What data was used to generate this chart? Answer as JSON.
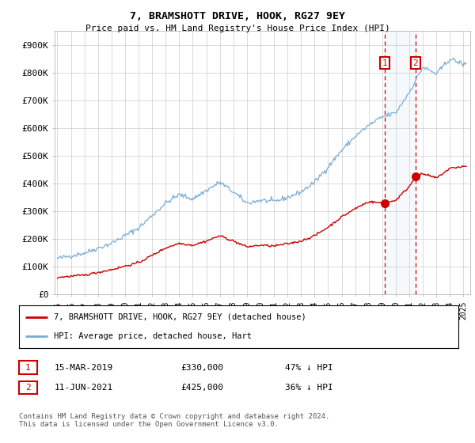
{
  "title": "7, BRAMSHOTT DRIVE, HOOK, RG27 9EY",
  "subtitle": "Price paid vs. HM Land Registry's House Price Index (HPI)",
  "ylabel_ticks": [
    "£0",
    "£100K",
    "£200K",
    "£300K",
    "£400K",
    "£500K",
    "£600K",
    "£700K",
    "£800K",
    "£900K"
  ],
  "ytick_values": [
    0,
    100000,
    200000,
    300000,
    400000,
    500000,
    600000,
    700000,
    800000,
    900000
  ],
  "ylim": [
    0,
    950000
  ],
  "xlim_start": 1994.8,
  "xlim_end": 2025.5,
  "hpi_color": "#7aadd4",
  "price_color": "#cc0000",
  "marker1_date": 2019.2,
  "marker2_date": 2021.45,
  "marker1_price": 330000,
  "marker2_price": 425000,
  "legend_label1": "7, BRAMSHOTT DRIVE, HOOK, RG27 9EY (detached house)",
  "legend_label2": "HPI: Average price, detached house, Hart",
  "table_row1_date": "15-MAR-2019",
  "table_row1_price": "£330,000",
  "table_row1_hpi": "47% ↓ HPI",
  "table_row2_date": "11-JUN-2021",
  "table_row2_price": "£425,000",
  "table_row2_hpi": "36% ↓ HPI",
  "footnote": "Contains HM Land Registry data © Crown copyright and database right 2024.\nThis data is licensed under the Open Government Licence v3.0.",
  "background_color": "#ffffff",
  "grid_color": "#cccccc",
  "hpi_key_years": [
    1995,
    1997,
    1999,
    2001,
    2003,
    2004,
    2005,
    2006,
    2007,
    2008,
    2009,
    2010,
    2011,
    2012,
    2013,
    2014,
    2015,
    2016,
    2017,
    2018,
    2019,
    2020,
    2021,
    2022,
    2023,
    2024,
    2025
  ],
  "hpi_key_values": [
    130000,
    150000,
    185000,
    240000,
    330000,
    360000,
    345000,
    375000,
    405000,
    370000,
    330000,
    340000,
    335000,
    350000,
    370000,
    405000,
    460000,
    520000,
    570000,
    610000,
    640000,
    655000,
    730000,
    820000,
    795000,
    850000,
    830000
  ],
  "price_key_years": [
    1995,
    1997,
    1999,
    2001,
    2003,
    2004,
    2005,
    2006,
    2007,
    2008,
    2009,
    2010,
    2011,
    2012,
    2013,
    2014,
    2015,
    2016,
    2017,
    2018,
    2019,
    2019.21,
    2020,
    2021,
    2021.46,
    2022,
    2023,
    2024,
    2025
  ],
  "price_key_values": [
    62000,
    70000,
    90000,
    115000,
    168000,
    185000,
    178000,
    193000,
    212000,
    193000,
    172000,
    178000,
    175000,
    183000,
    193000,
    212000,
    243000,
    280000,
    310000,
    335000,
    330000,
    330000,
    340000,
    390000,
    425000,
    435000,
    420000,
    455000,
    462000
  ]
}
